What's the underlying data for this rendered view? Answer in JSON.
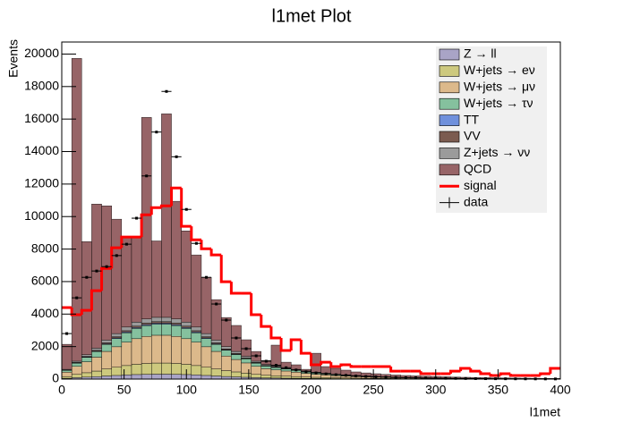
{
  "chart_data": {
    "type": "stacked-histogram",
    "title": "l1met Plot",
    "x_label": "l1met",
    "y_label": "Events",
    "bins": [
      0,
      8,
      16,
      24,
      32,
      40,
      48,
      56,
      64,
      72,
      80,
      88,
      96,
      104,
      112,
      120,
      128,
      136,
      144,
      152,
      160,
      168,
      176,
      184,
      192,
      200,
      208,
      216,
      224,
      232,
      240,
      248,
      256,
      264,
      272,
      280,
      288,
      296,
      304,
      312,
      320,
      328,
      336,
      344,
      352,
      360,
      368,
      376,
      384,
      392,
      400
    ],
    "xlim": [
      0,
      400
    ],
    "xticks": [
      0,
      50,
      100,
      150,
      200,
      250,
      300,
      350,
      400
    ],
    "ylim": [
      0,
      20740
    ],
    "yticks": [
      0,
      2000,
      4000,
      6000,
      8000,
      10000,
      12000,
      14000,
      16000,
      18000,
      20000
    ],
    "legend": "upper right",
    "series": [
      {
        "name": "Z → ll",
        "color": "#a9a4c6",
        "values": [
          48,
          88,
          120,
          152,
          192,
          224,
          256,
          280,
          296,
          304,
          304,
          296,
          280,
          256,
          224,
          192,
          160,
          136,
          112,
          88,
          72,
          64,
          56,
          48,
          40,
          34,
          29,
          24,
          21,
          18,
          15,
          13,
          11,
          10,
          8,
          7,
          6,
          6,
          5,
          4,
          4,
          3,
          3,
          2,
          2,
          2,
          2,
          2,
          1,
          1
        ]
      },
      {
        "name": "W+jets → eν",
        "color": "#cdc97e",
        "values": [
          108,
          198,
          270,
          342,
          432,
          504,
          576,
          630,
          666,
          684,
          684,
          666,
          630,
          576,
          504,
          432,
          360,
          306,
          252,
          198,
          162,
          144,
          126,
          108,
          90,
          76,
          65,
          54,
          47,
          40,
          34,
          29,
          25,
          22,
          18,
          16,
          14,
          13,
          11,
          9,
          8,
          7,
          6,
          5,
          5,
          5,
          4,
          4,
          3,
          3
        ]
      },
      {
        "name": "W+jets → μν",
        "color": "#dcb98b",
        "values": [
          270,
          495,
          675,
          855,
          1080,
          1260,
          1440,
          1575,
          1665,
          1710,
          1710,
          1665,
          1575,
          1440,
          1260,
          1080,
          900,
          765,
          630,
          495,
          405,
          360,
          315,
          270,
          225,
          189,
          162,
          135,
          117,
          99,
          86,
          72,
          63,
          54,
          45,
          41,
          36,
          32,
          27,
          23,
          20,
          18,
          16,
          14,
          13,
          11,
          10,
          9,
          8,
          7
        ]
      },
      {
        "name": "W+jets → τν",
        "color": "#85c19e",
        "values": [
          108,
          198,
          270,
          342,
          432,
          504,
          576,
          630,
          666,
          684,
          684,
          666,
          630,
          576,
          504,
          432,
          360,
          306,
          252,
          198,
          162,
          144,
          126,
          108,
          90,
          76,
          65,
          54,
          47,
          40,
          34,
          29,
          25,
          22,
          18,
          16,
          14,
          13,
          11,
          9,
          8,
          7,
          6,
          5,
          5,
          5,
          4,
          4,
          3,
          3
        ]
      },
      {
        "name": "TT",
        "color": "#6f90dc",
        "values": [
          9,
          17,
          23,
          29,
          36,
          42,
          48,
          53,
          56,
          57,
          57,
          56,
          53,
          48,
          42,
          36,
          30,
          26,
          21,
          17,
          14,
          12,
          11,
          9,
          8,
          6,
          5,
          5,
          4,
          3,
          3,
          2,
          2,
          2,
          2,
          1,
          1,
          1,
          1,
          1,
          1,
          1,
          1,
          0,
          0,
          0,
          0,
          0,
          0,
          0
        ]
      },
      {
        "name": "VV",
        "color": "#7b5b50",
        "values": [
          15,
          28,
          38,
          48,
          60,
          70,
          80,
          88,
          93,
          95,
          95,
          93,
          88,
          80,
          70,
          60,
          50,
          43,
          35,
          28,
          23,
          20,
          18,
          15,
          13,
          11,
          9,
          8,
          7,
          6,
          5,
          4,
          4,
          3,
          3,
          2,
          2,
          2,
          2,
          1,
          1,
          1,
          1,
          1,
          1,
          1,
          1,
          0,
          0,
          0
        ]
      },
      {
        "name": "Z+jets → νν",
        "color": "#9b9b9b",
        "values": [
          42,
          77,
          105,
          133,
          168,
          196,
          224,
          245,
          259,
          266,
          266,
          259,
          245,
          224,
          196,
          168,
          140,
          119,
          98,
          77,
          63,
          56,
          49,
          42,
          35,
          29,
          25,
          21,
          18,
          15,
          13,
          11,
          10,
          8,
          7,
          6,
          6,
          5,
          4,
          4,
          3,
          3,
          2,
          2,
          2,
          1,
          1,
          1,
          1,
          1
        ]
      },
      {
        "name": "QCD",
        "color": "#976467",
        "values": [
          1540,
          18630,
          6960,
          8870,
          8260,
          7040,
          5540,
          5240,
          12400,
          4700,
          12520,
          7240,
          5620,
          4440,
          3460,
          2490,
          1790,
          1600,
          1020,
          600,
          250,
          1290,
          340,
          280,
          100,
          1170,
          410,
          360,
          290,
          220,
          190,
          170,
          150,
          130,
          120,
          110,
          100,
          90,
          80,
          70,
          65,
          60,
          55,
          50,
          42,
          35,
          33,
          30,
          27,
          25
        ]
      }
    ],
    "overlays": [
      {
        "name": "signal",
        "color": "#ff0000",
        "style": "step",
        "values": [
          4400,
          3960,
          4230,
          5440,
          6810,
          8080,
          8740,
          8740,
          10110,
          10550,
          10660,
          11760,
          9400,
          8570,
          8020,
          7640,
          5990,
          5280,
          5280,
          3960,
          3240,
          2530,
          1760,
          2420,
          1590,
          880,
          1040,
          770,
          880,
          770,
          770,
          770,
          770,
          490,
          490,
          490,
          330,
          330,
          330,
          490,
          660,
          490,
          330,
          220,
          330,
          220,
          220,
          220,
          330,
          660
        ]
      },
      {
        "name": "data",
        "color": "#000000",
        "style": "points",
        "values": [
          2800,
          5000,
          6260,
          6650,
          6920,
          7600,
          8300,
          9900,
          12500,
          15200,
          17700,
          13680,
          10440,
          8350,
          6260,
          4620,
          3630,
          2530,
          1870,
          1430,
          1100,
          850,
          700,
          560,
          450,
          380,
          320,
          270,
          230,
          190,
          160,
          140,
          120,
          100,
          85,
          75,
          65,
          55,
          48,
          42,
          36,
          30,
          26,
          22,
          19,
          16,
          14,
          12,
          10,
          9
        ]
      }
    ]
  }
}
